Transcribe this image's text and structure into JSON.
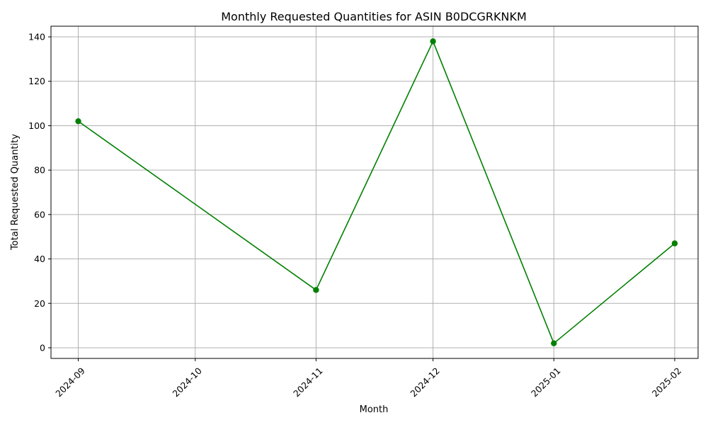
{
  "chart_data": {
    "type": "line",
    "title": "Monthly Requested Quantities for ASIN B0DCGRKNKM",
    "xlabel": "Month",
    "ylabel": "Total Requested Quantity",
    "x_ticks": [
      "2024-09",
      "2024-10",
      "2024-11",
      "2024-12",
      "2025-01",
      "2025-02"
    ],
    "y_ticks": [
      0,
      20,
      40,
      60,
      80,
      100,
      120,
      140
    ],
    "xlim": [
      "2024-08-25",
      "2025-02-07"
    ],
    "ylim": [
      -4.8,
      144.8
    ],
    "grid": true,
    "series": [
      {
        "color": "#008000",
        "marker": "circle",
        "points": [
          {
            "x": "2024-09-01",
            "y": 102
          },
          {
            "x": "2024-11-01",
            "y": 26
          },
          {
            "x": "2024-12-01",
            "y": 138
          },
          {
            "x": "2025-01-01",
            "y": 2
          },
          {
            "x": "2025-02-01",
            "y": 47
          }
        ]
      }
    ]
  }
}
